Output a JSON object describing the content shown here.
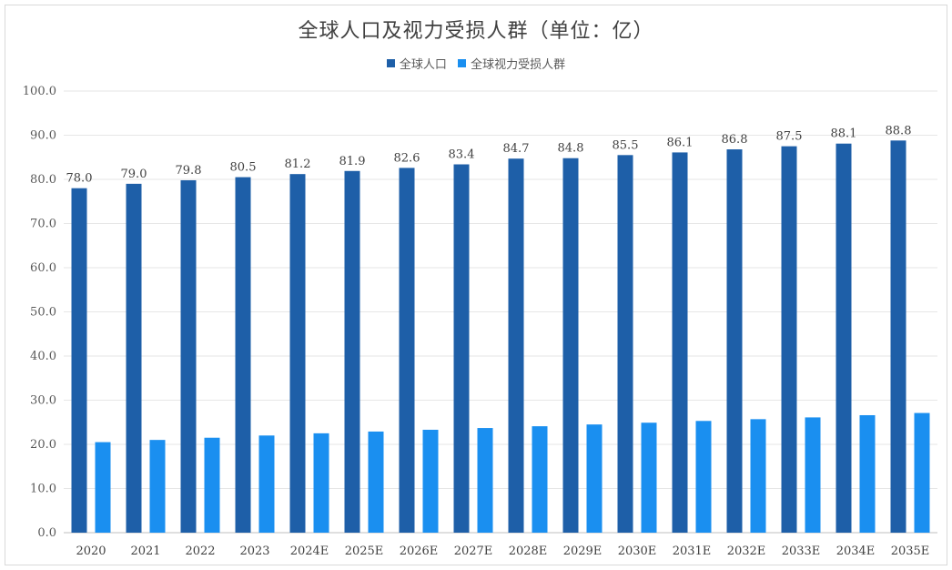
{
  "chart_data": {
    "type": "bar",
    "title": "全球人口及视力受损人群（单位：亿）",
    "xlabel": "",
    "ylabel": "",
    "ylim": [
      0,
      100
    ],
    "yticks": [
      "0.0",
      "10.0",
      "20.0",
      "30.0",
      "40.0",
      "50.0",
      "60.0",
      "70.0",
      "80.0",
      "90.0",
      "100.0"
    ],
    "categories": [
      "2020",
      "2021",
      "2022",
      "2023",
      "2024E",
      "2025E",
      "2026E",
      "2027E",
      "2028E",
      "2029E",
      "2030E",
      "2031E",
      "2032E",
      "2033E",
      "2034E",
      "2035E"
    ],
    "series": [
      {
        "name": "全球人口",
        "color": "#1e5fa8",
        "values": [
          78.0,
          79.0,
          79.8,
          80.5,
          81.2,
          81.9,
          82.6,
          83.4,
          84.7,
          84.8,
          85.5,
          86.1,
          86.8,
          87.5,
          88.1,
          88.8
        ],
        "labels": [
          "78.0",
          "79.0",
          "79.8",
          "80.5",
          "81.2",
          "81.9",
          "82.6",
          "83.4",
          "84.7",
          "84.8",
          "85.5",
          "86.1",
          "86.8",
          "87.5",
          "88.1",
          "88.8"
        ]
      },
      {
        "name": "全球视力受损人群",
        "color": "#1a8ff0",
        "values": [
          20.5,
          21.0,
          21.5,
          22.0,
          22.5,
          22.9,
          23.3,
          23.7,
          24.1,
          24.5,
          24.9,
          25.3,
          25.7,
          26.1,
          26.6,
          27.1
        ]
      }
    ],
    "grid": true,
    "legend_position": "top"
  }
}
